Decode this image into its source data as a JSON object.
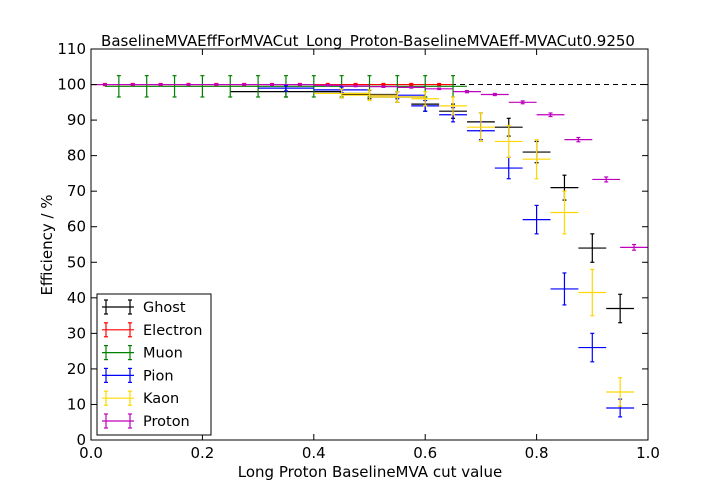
{
  "chart_data": {
    "type": "scatter",
    "title": "BaselineMVAEffForMVACut_Long_Proton-BaselineMVAEff-MVACut0.9250",
    "xlabel": "Long Proton BaselineMVA cut value",
    "ylabel": "Efficiency / %",
    "xlim": [
      0.0,
      1.0
    ],
    "ylim": [
      0,
      110
    ],
    "x_ticks": [
      0.0,
      0.2,
      0.4,
      0.6,
      0.8,
      1.0
    ],
    "x_tick_labels": [
      "0.0",
      "0.2",
      "0.4",
      "0.6",
      "0.8",
      "1.0"
    ],
    "y_ticks": [
      0,
      10,
      20,
      30,
      40,
      50,
      60,
      70,
      80,
      90,
      100,
      110
    ],
    "y_tick_labels": [
      "0",
      "10",
      "20",
      "30",
      "40",
      "50",
      "60",
      "70",
      "80",
      "90",
      "100",
      "110"
    ],
    "reference_line": 100,
    "grid": false,
    "legend_position": "lower-left",
    "series": [
      {
        "name": "Ghost",
        "color": "#000000",
        "points": [
          {
            "x": 0.35,
            "y": 98.0,
            "xerr": 0.1,
            "yerr": 1.5
          },
          {
            "x": 0.45,
            "y": 97.5,
            "xerr": 0.05,
            "yerr": 1.2
          },
          {
            "x": 0.5,
            "y": 97.2,
            "xerr": 0.05,
            "yerr": 1.2
          },
          {
            "x": 0.55,
            "y": 96.5,
            "xerr": 0.05,
            "yerr": 1.5
          },
          {
            "x": 0.6,
            "y": 94.5,
            "xerr": 0.025,
            "yerr": 2.0
          },
          {
            "x": 0.65,
            "y": 92.5,
            "xerr": 0.025,
            "yerr": 2.0
          },
          {
            "x": 0.7,
            "y": 89.5,
            "xerr": 0.025,
            "yerr": 2.5
          },
          {
            "x": 0.75,
            "y": 88.0,
            "xerr": 0.025,
            "yerr": 2.5
          },
          {
            "x": 0.8,
            "y": 81.0,
            "xerr": 0.025,
            "yerr": 3.0
          },
          {
            "x": 0.85,
            "y": 71.0,
            "xerr": 0.025,
            "yerr": 3.5
          },
          {
            "x": 0.9,
            "y": 54.0,
            "xerr": 0.025,
            "yerr": 4.0
          },
          {
            "x": 0.95,
            "y": 37.0,
            "xerr": 0.025,
            "yerr": 4.0
          }
        ]
      },
      {
        "name": "Electron",
        "color": "#ff0000",
        "points": [
          {
            "x": 0.025,
            "y": 100.0,
            "xerr": 0.025,
            "yerr": 0.3
          },
          {
            "x": 0.075,
            "y": 100.0,
            "xerr": 0.025,
            "yerr": 0.3
          },
          {
            "x": 0.125,
            "y": 100.0,
            "xerr": 0.025,
            "yerr": 0.3
          },
          {
            "x": 0.175,
            "y": 100.0,
            "xerr": 0.025,
            "yerr": 0.3
          },
          {
            "x": 0.225,
            "y": 100.0,
            "xerr": 0.025,
            "yerr": 0.3
          },
          {
            "x": 0.275,
            "y": 100.0,
            "xerr": 0.025,
            "yerr": 0.3
          },
          {
            "x": 0.325,
            "y": 100.0,
            "xerr": 0.025,
            "yerr": 0.3
          },
          {
            "x": 0.375,
            "y": 100.0,
            "xerr": 0.025,
            "yerr": 0.3
          },
          {
            "x": 0.425,
            "y": 100.0,
            "xerr": 0.025,
            "yerr": 0.3
          },
          {
            "x": 0.475,
            "y": 100.0,
            "xerr": 0.025,
            "yerr": 0.3
          },
          {
            "x": 0.525,
            "y": 100.0,
            "xerr": 0.025,
            "yerr": 0.3
          },
          {
            "x": 0.575,
            "y": 100.0,
            "xerr": 0.025,
            "yerr": 0.3
          },
          {
            "x": 0.625,
            "y": 100.0,
            "xerr": 0.025,
            "yerr": 0.3
          }
        ]
      },
      {
        "name": "Muon",
        "color": "#008000",
        "points": [
          {
            "x": 0.05,
            "y": 99.5,
            "xerr": 0.025,
            "yerr": 3.0
          },
          {
            "x": 0.1,
            "y": 99.5,
            "xerr": 0.025,
            "yerr": 3.0
          },
          {
            "x": 0.15,
            "y": 99.5,
            "xerr": 0.025,
            "yerr": 3.0
          },
          {
            "x": 0.2,
            "y": 99.5,
            "xerr": 0.025,
            "yerr": 3.0
          },
          {
            "x": 0.25,
            "y": 99.5,
            "xerr": 0.025,
            "yerr": 3.0
          },
          {
            "x": 0.3,
            "y": 99.5,
            "xerr": 0.025,
            "yerr": 3.0
          },
          {
            "x": 0.35,
            "y": 99.5,
            "xerr": 0.025,
            "yerr": 3.0
          },
          {
            "x": 0.4,
            "y": 99.5,
            "xerr": 0.025,
            "yerr": 3.0
          },
          {
            "x": 0.45,
            "y": 99.5,
            "xerr": 0.025,
            "yerr": 3.0
          },
          {
            "x": 0.5,
            "y": 99.5,
            "xerr": 0.025,
            "yerr": 3.0
          },
          {
            "x": 0.55,
            "y": 99.5,
            "xerr": 0.025,
            "yerr": 3.0
          },
          {
            "x": 0.6,
            "y": 99.5,
            "xerr": 0.025,
            "yerr": 3.0
          },
          {
            "x": 0.65,
            "y": 99.5,
            "xerr": 0.025,
            "yerr": 3.0
          }
        ]
      },
      {
        "name": "Pion",
        "color": "#0000ff",
        "points": [
          {
            "x": 0.35,
            "y": 99.0,
            "xerr": 0.05,
            "yerr": 0.8
          },
          {
            "x": 0.45,
            "y": 98.5,
            "xerr": 0.05,
            "yerr": 0.8
          },
          {
            "x": 0.55,
            "y": 97.0,
            "xerr": 0.05,
            "yerr": 1.0
          },
          {
            "x": 0.6,
            "y": 94.0,
            "xerr": 0.025,
            "yerr": 1.5
          },
          {
            "x": 0.65,
            "y": 91.5,
            "xerr": 0.025,
            "yerr": 2.0
          },
          {
            "x": 0.7,
            "y": 87.0,
            "xerr": 0.025,
            "yerr": 2.5
          },
          {
            "x": 0.75,
            "y": 76.5,
            "xerr": 0.025,
            "yerr": 3.0
          },
          {
            "x": 0.8,
            "y": 62.0,
            "xerr": 0.025,
            "yerr": 4.0
          },
          {
            "x": 0.85,
            "y": 42.5,
            "xerr": 0.025,
            "yerr": 4.5
          },
          {
            "x": 0.9,
            "y": 26.0,
            "xerr": 0.025,
            "yerr": 4.0
          },
          {
            "x": 0.95,
            "y": 9.0,
            "xerr": 0.025,
            "yerr": 2.5
          }
        ]
      },
      {
        "name": "Kaon",
        "color": "#ffd700",
        "points": [
          {
            "x": 0.45,
            "y": 97.5,
            "xerr": 0.05,
            "yerr": 1.2
          },
          {
            "x": 0.5,
            "y": 97.0,
            "xerr": 0.05,
            "yerr": 1.5
          },
          {
            "x": 0.55,
            "y": 96.5,
            "xerr": 0.05,
            "yerr": 1.5
          },
          {
            "x": 0.6,
            "y": 96.0,
            "xerr": 0.025,
            "yerr": 2.0
          },
          {
            "x": 0.65,
            "y": 94.0,
            "xerr": 0.025,
            "yerr": 2.5
          },
          {
            "x": 0.7,
            "y": 88.0,
            "xerr": 0.025,
            "yerr": 4.0
          },
          {
            "x": 0.75,
            "y": 84.0,
            "xerr": 0.025,
            "yerr": 4.5
          },
          {
            "x": 0.8,
            "y": 79.0,
            "xerr": 0.025,
            "yerr": 5.5
          },
          {
            "x": 0.85,
            "y": 64.0,
            "xerr": 0.025,
            "yerr": 6.0
          },
          {
            "x": 0.9,
            "y": 41.5,
            "xerr": 0.025,
            "yerr": 6.5
          },
          {
            "x": 0.95,
            "y": 13.5,
            "xerr": 0.025,
            "yerr": 4.0
          }
        ]
      },
      {
        "name": "Proton",
        "color": "#bf00bf",
        "points": [
          {
            "x": 0.025,
            "y": 100.0,
            "xerr": 0.025,
            "yerr": 0.2
          },
          {
            "x": 0.075,
            "y": 100.0,
            "xerr": 0.025,
            "yerr": 0.2
          },
          {
            "x": 0.125,
            "y": 100.0,
            "xerr": 0.025,
            "yerr": 0.2
          },
          {
            "x": 0.175,
            "y": 100.0,
            "xerr": 0.025,
            "yerr": 0.2
          },
          {
            "x": 0.225,
            "y": 100.0,
            "xerr": 0.025,
            "yerr": 0.2
          },
          {
            "x": 0.275,
            "y": 100.0,
            "xerr": 0.025,
            "yerr": 0.2
          },
          {
            "x": 0.325,
            "y": 100.0,
            "xerr": 0.025,
            "yerr": 0.2
          },
          {
            "x": 0.375,
            "y": 100.0,
            "xerr": 0.025,
            "yerr": 0.2
          },
          {
            "x": 0.425,
            "y": 99.8,
            "xerr": 0.025,
            "yerr": 0.2
          },
          {
            "x": 0.475,
            "y": 99.6,
            "xerr": 0.025,
            "yerr": 0.2
          },
          {
            "x": 0.525,
            "y": 99.4,
            "xerr": 0.025,
            "yerr": 0.2
          },
          {
            "x": 0.575,
            "y": 99.2,
            "xerr": 0.025,
            "yerr": 0.2
          },
          {
            "x": 0.625,
            "y": 98.8,
            "xerr": 0.025,
            "yerr": 0.2
          },
          {
            "x": 0.675,
            "y": 98.0,
            "xerr": 0.025,
            "yerr": 0.3
          },
          {
            "x": 0.725,
            "y": 97.2,
            "xerr": 0.025,
            "yerr": 0.3
          },
          {
            "x": 0.775,
            "y": 95.0,
            "xerr": 0.025,
            "yerr": 0.4
          },
          {
            "x": 0.825,
            "y": 91.5,
            "xerr": 0.025,
            "yerr": 0.5
          },
          {
            "x": 0.875,
            "y": 84.5,
            "xerr": 0.025,
            "yerr": 0.6
          },
          {
            "x": 0.925,
            "y": 73.3,
            "xerr": 0.025,
            "yerr": 0.7
          },
          {
            "x": 0.975,
            "y": 54.2,
            "xerr": 0.025,
            "yerr": 0.8
          }
        ]
      }
    ]
  }
}
